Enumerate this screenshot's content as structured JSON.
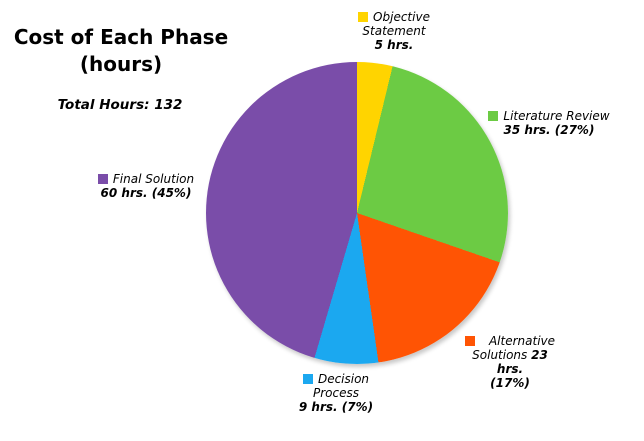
{
  "title": {
    "line1": "Cost of Each Phase",
    "line2": "(hours)"
  },
  "subtitle": "Total Hours: 132",
  "chart_data": {
    "type": "pie",
    "title": "Cost of Each Phase (hours)",
    "total_label": "Total Hours: 132",
    "total_hours": 132,
    "start_angle_deg": 0,
    "direction": "clockwise",
    "legend_position": "around",
    "labels": [
      "Objective Statement",
      "Literature Review",
      "Alternative Solutions",
      "Decision Process",
      "Final Solution"
    ],
    "values": [
      5,
      35,
      23,
      9,
      60
    ],
    "displayed_values": [
      "5 hrs.",
      "35 hrs. (27%)",
      "23 hrs. (17%)",
      "9 hrs. (7%)",
      "60 hrs. (45%)"
    ],
    "percentages_shown": [
      null,
      27,
      17,
      7,
      45
    ],
    "colors": [
      "#FFD400",
      "#6CCB44",
      "#FF5404",
      "#1BA8F0",
      "#7A4DA9"
    ]
  },
  "legend": {
    "objective": {
      "name_line1": "Objective",
      "name_line2": "Statement",
      "value": "5 hrs."
    },
    "literature": {
      "name": "Literature Review",
      "value": "35 hrs. (27%)"
    },
    "alternative": {
      "name_line1": "Alternative",
      "name_line2": "Solutions",
      "value_inline": "23 hrs.",
      "value_line2": "(17%)"
    },
    "decision": {
      "name": "Decision Process",
      "value": "9 hrs. (7%)"
    },
    "final": {
      "name": "Final Solution",
      "value": "60 hrs. (45%)"
    }
  }
}
